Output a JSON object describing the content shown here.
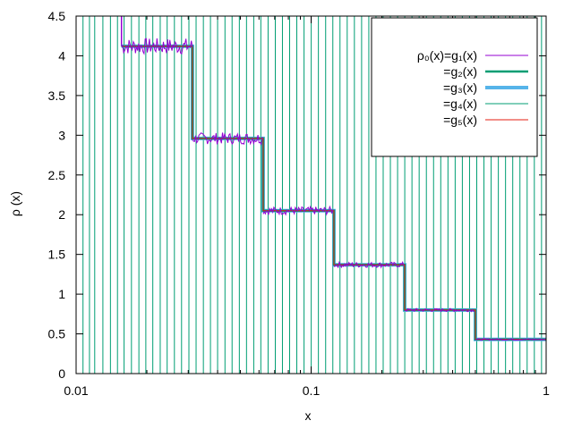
{
  "chart_data": {
    "type": "line",
    "xlabel": "x",
    "ylabel": "ρ (x)",
    "xscale": "log",
    "xlim": [
      0.01,
      1
    ],
    "ylim": [
      0,
      4.5
    ],
    "x_ticks": [
      "0.01",
      "0.1",
      "1"
    ],
    "y_ticks": [
      "0",
      "0.5",
      "1",
      "1.5",
      "2",
      "2.5",
      "3",
      "3.5",
      "4",
      "4.5"
    ],
    "legend_position": "top-right",
    "legend": [
      {
        "label": "ρ₀(x)=g₁(x)",
        "color": "#9400d3",
        "style": "thin"
      },
      {
        "label": "=g₂(x)",
        "color": "#009e73",
        "style": "thick"
      },
      {
        "label": "=g₃(x)",
        "color": "#56b4e9",
        "style": "thick"
      },
      {
        "label": "=g₄(x)",
        "color": "#009e73",
        "style": "thin"
      },
      {
        "label": "=g₅(x)",
        "color": "#e51e10",
        "style": "thin"
      }
    ],
    "steps": [
      {
        "x0": 0.0156,
        "x1": 0.03125,
        "y": 4.12
      },
      {
        "x0": 0.03125,
        "x1": 0.0625,
        "y": 2.96
      },
      {
        "x0": 0.0625,
        "x1": 0.125,
        "y": 2.05
      },
      {
        "x0": 0.125,
        "x1": 0.25,
        "y": 1.37
      },
      {
        "x0": 0.25,
        "x1": 0.5,
        "y": 0.8
      },
      {
        "x0": 0.5,
        "x1": 1.0,
        "y": 0.43
      }
    ],
    "series": [
      {
        "name": "ρ₀(x)=g₁(x)",
        "color": "#9400d3",
        "width": 1
      },
      {
        "name": "=g₂(x)",
        "color": "#009e73",
        "width": 2.5
      },
      {
        "name": "=g₃(x)",
        "color": "#56b4e9",
        "width": 4
      },
      {
        "name": "=g₄(x)",
        "color": "#009e73",
        "width": 1,
        "vertical_lines_x": [
          0.0107,
          0.0114,
          0.012,
          0.013,
          0.014,
          0.015,
          0.016,
          0.0172,
          0.0185,
          0.0198,
          0.0212,
          0.0228,
          0.0244,
          0.0262,
          0.0281,
          0.0302,
          0.0324,
          0.0348,
          0.0373,
          0.04,
          0.043,
          0.0461,
          0.0495,
          0.0531,
          0.057,
          0.0611,
          0.0656,
          0.0704,
          0.0755,
          0.081,
          0.0869,
          0.0933,
          0.1001,
          0.1074,
          0.1153,
          0.1237,
          0.1327,
          0.1424,
          0.1528,
          0.164,
          0.176,
          0.1888,
          0.2026,
          0.2174,
          0.2333,
          0.2503,
          0.2686,
          0.2882,
          0.3093,
          0.3319,
          0.3561,
          0.3822,
          0.4101,
          0.44,
          0.4722,
          0.5067,
          0.5437,
          0.5834,
          0.6261,
          0.6718,
          0.7209,
          0.7736,
          0.8301,
          0.8908,
          0.9559
        ]
      },
      {
        "name": "=g₅(x)",
        "color": "#e51e10",
        "width": 1
      }
    ]
  }
}
